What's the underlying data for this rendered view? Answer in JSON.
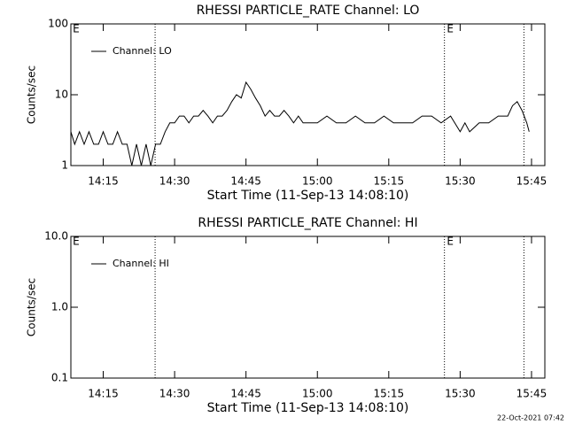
{
  "charts": [
    {
      "type": "line",
      "title": "RHESSI PARTICLE_RATE Channel: LO",
      "xlabel": "Start Time (11-Sep-13 14:08:10)",
      "ylabel": "Counts/sec",
      "log_y": true,
      "xlim": [
        848.2,
        947.8
      ],
      "ylim": [
        1,
        100
      ],
      "xticks": [
        {
          "value": 855,
          "label": "14:15"
        },
        {
          "value": 870,
          "label": "14:30"
        },
        {
          "value": 885,
          "label": "14:45"
        },
        {
          "value": 900,
          "label": "15:00"
        },
        {
          "value": 915,
          "label": "15:15"
        },
        {
          "value": 930,
          "label": "15:30"
        },
        {
          "value": 945,
          "label": "15:45"
        }
      ],
      "yticks": [
        1,
        10,
        100
      ],
      "event_lines": [
        865.9,
        926.7,
        943.4
      ],
      "annotations": [
        {
          "text": "E",
          "x": 848.6
        },
        {
          "text": "E",
          "x": 927.2
        }
      ],
      "legend": "upper left",
      "series": [
        {
          "name": "Channel: LO",
          "color": "#000000",
          "x": [
            848.2,
            849,
            850,
            851,
            852,
            853,
            854,
            855,
            856,
            857,
            858,
            859,
            860,
            861,
            862,
            863,
            864,
            865,
            866,
            867,
            868,
            869,
            870,
            871,
            872,
            873,
            874,
            875,
            876,
            877,
            878,
            879,
            880,
            881,
            882,
            883,
            884,
            885,
            886,
            887,
            888,
            889,
            890,
            891,
            892,
            893,
            894,
            895,
            896,
            897,
            898,
            900,
            902,
            904,
            906,
            908,
            910,
            912,
            914,
            916,
            918,
            920,
            922,
            924,
            926,
            928,
            930,
            931,
            932,
            934,
            936,
            938,
            940,
            941,
            942,
            943,
            944,
            944.5
          ],
          "values": [
            3,
            2,
            3,
            2,
            3,
            2,
            2,
            3,
            2,
            2,
            3,
            2,
            2,
            1,
            2,
            1,
            2,
            1,
            2,
            2,
            3,
            4,
            4,
            5,
            5,
            4,
            5,
            5,
            6,
            5,
            4,
            5,
            5,
            6,
            8,
            10,
            9,
            15,
            12,
            9,
            7,
            5,
            6,
            5,
            5,
            6,
            5,
            4,
            5,
            4,
            4,
            4,
            5,
            4,
            4,
            5,
            4,
            4,
            5,
            4,
            4,
            4,
            5,
            5,
            4,
            5,
            3,
            4,
            3,
            4,
            4,
            5,
            5,
            7,
            8,
            6,
            4,
            3
          ]
        }
      ]
    },
    {
      "type": "line",
      "title": "RHESSI PARTICLE_RATE Channel: HI",
      "xlabel": "Start Time (11-Sep-13 14:08:10)",
      "ylabel": "Counts/sec",
      "log_y": true,
      "xlim": [
        848.2,
        947.8
      ],
      "ylim": [
        0.1,
        10
      ],
      "xticks": [
        {
          "value": 855,
          "label": "14:15"
        },
        {
          "value": 870,
          "label": "14:30"
        },
        {
          "value": 885,
          "label": "14:45"
        },
        {
          "value": 900,
          "label": "15:00"
        },
        {
          "value": 915,
          "label": "15:15"
        },
        {
          "value": 930,
          "label": "15:30"
        },
        {
          "value": 945,
          "label": "15:45"
        }
      ],
      "yticks": [
        0.1,
        {
          "value": 1,
          "label": "1.0"
        },
        {
          "value": 10,
          "label": "10.0"
        }
      ],
      "event_lines": [
        865.9,
        926.7,
        943.4
      ],
      "annotations": [
        {
          "text": "E",
          "x": 848.6
        },
        {
          "text": "E",
          "x": 927.2
        }
      ],
      "legend": "upper left",
      "series": [
        {
          "name": "Channel: HI",
          "color": "#000000",
          "x": [],
          "values": []
        }
      ]
    }
  ],
  "footer": "22-Oct-2021 07:42"
}
